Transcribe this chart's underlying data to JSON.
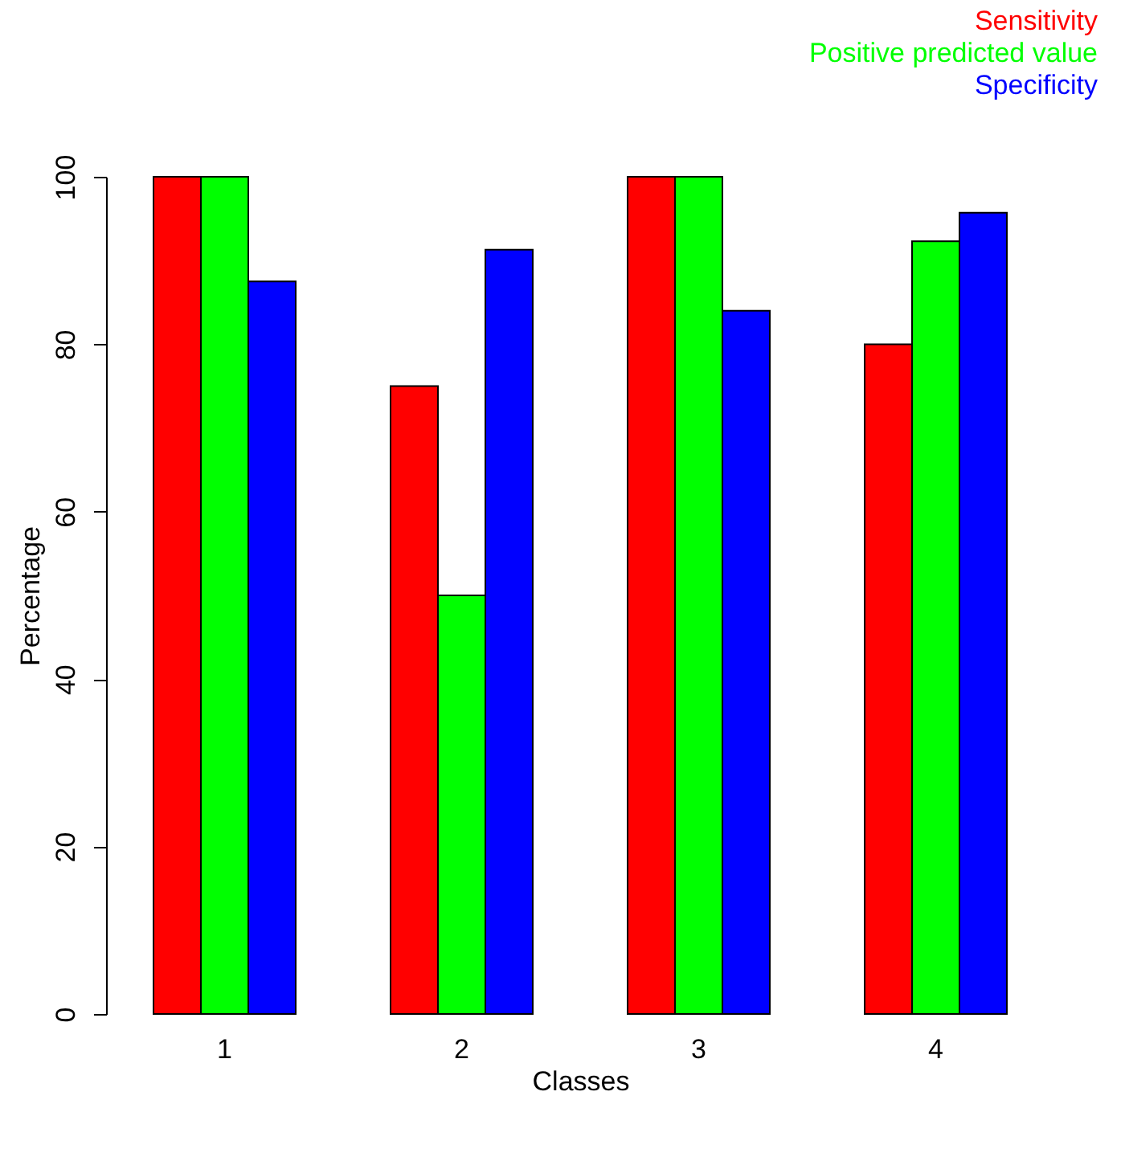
{
  "chart_data": {
    "type": "bar",
    "xlabel": "Classes",
    "ylabel": "Percentage",
    "categories": [
      "1",
      "2",
      "3",
      "4"
    ],
    "series": [
      {
        "name": "Sensitivity",
        "color": "#ff0000",
        "values": [
          100,
          75,
          100,
          80
        ]
      },
      {
        "name": "Positive predicted value",
        "color": "#00ff00",
        "values": [
          100,
          50,
          100,
          92.3
        ]
      },
      {
        "name": "Specificity",
        "color": "#0000ff",
        "values": [
          87.5,
          91.3,
          84,
          95.7
        ]
      }
    ],
    "ylim": [
      0,
      100
    ],
    "yticks": [
      0,
      20,
      40,
      60,
      80,
      100
    ],
    "grid": false,
    "legend": "top right"
  }
}
